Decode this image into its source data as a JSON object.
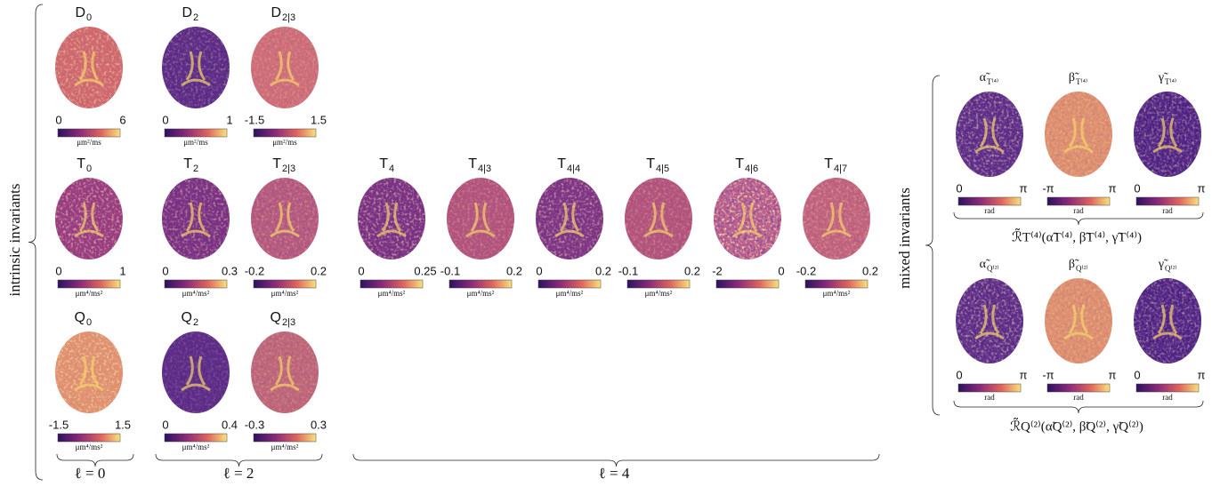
{
  "left_label": "intrinsic invariants",
  "right_label": "mixed invariants",
  "group_labels": [
    "ℓ = 0",
    "ℓ = 2",
    "ℓ = 4"
  ],
  "panels": [
    {
      "title": "D",
      "sub": "0",
      "min": "0",
      "max": "6",
      "unit": "μm²/ms"
    },
    {
      "title": "D",
      "sub": "2",
      "min": "0",
      "max": "1",
      "unit": "μm²/ms"
    },
    {
      "title": "D",
      "sub": "2|3",
      "min": "-1.5",
      "max": "1.5",
      "unit": "μm²/ms"
    },
    {
      "title": "T",
      "sub": "0",
      "min": "0",
      "max": "1",
      "unit": "μm⁴/ms²"
    },
    {
      "title": "T",
      "sub": "2",
      "min": "0",
      "max": "0.3",
      "unit": "μm⁴/ms²"
    },
    {
      "title": "T",
      "sub": "2|3",
      "min": "-0.2",
      "max": "0.2",
      "unit": "μm⁴/ms²"
    },
    {
      "title": "T",
      "sub": "4",
      "min": "0",
      "max": "0.25",
      "unit": "μm⁴/ms²"
    },
    {
      "title": "T",
      "sub": "4|3",
      "min": "-0.1",
      "max": "0.2",
      "unit": "μm⁴/ms²"
    },
    {
      "title": "T",
      "sub": "4|4",
      "min": "0",
      "max": "0.2",
      "unit": "μm⁴/ms²"
    },
    {
      "title": "T",
      "sub": "4|5",
      "min": "-0.1",
      "max": "0.2",
      "unit": "μm⁴/ms²"
    },
    {
      "title": "T",
      "sub": "4|6",
      "min": "-2",
      "max": "0"
    },
    {
      "title": "T",
      "sub": "4|7",
      "min": "-0.2",
      "max": "0.2",
      "unit": "μm⁴/ms²"
    },
    {
      "title": "Q",
      "sub": "0",
      "min": "-1.5",
      "max": "1.5",
      "unit": "μm⁴/ms²"
    },
    {
      "title": "Q",
      "sub": "2",
      "min": "0",
      "max": "0.4",
      "unit": "μm⁴/ms²"
    },
    {
      "title": "Q",
      "sub": "2|3",
      "min": "-0.3",
      "max": "0.3",
      "unit": "μm⁴/ms²"
    }
  ],
  "mixed": [
    {
      "label": "ℛ̃T⁽⁴⁾(α̃T⁽⁴⁾, β̃T⁽⁴⁾, γ̃T⁽⁴⁾)",
      "panels": [
        {
          "title": "α̃",
          "sub": "T⁽⁴⁾",
          "min": "0",
          "max": "π",
          "unit": "rad"
        },
        {
          "title": "β̃",
          "sub": "T⁽⁴⁾",
          "min": "-π",
          "max": "π",
          "unit": "rad"
        },
        {
          "title": "γ̃",
          "sub": "T⁽⁴⁾",
          "min": "0",
          "max": "π",
          "unit": "rad"
        }
      ]
    },
    {
      "label": "ℛ̃Q⁽²⁾(α̃Q⁽²⁾, β̃Q⁽²⁾, γ̃Q⁽²⁾)",
      "panels": [
        {
          "title": "α̃",
          "sub": "Q⁽²⁾",
          "min": "0",
          "max": "π",
          "unit": "rad"
        },
        {
          "title": "β̃",
          "sub": "Q⁽²⁾",
          "min": "-π",
          "max": "π",
          "unit": "rad"
        },
        {
          "title": "γ̃",
          "sub": "Q⁽²⁾",
          "min": "0",
          "max": "π",
          "unit": "rad"
        }
      ]
    }
  ]
}
